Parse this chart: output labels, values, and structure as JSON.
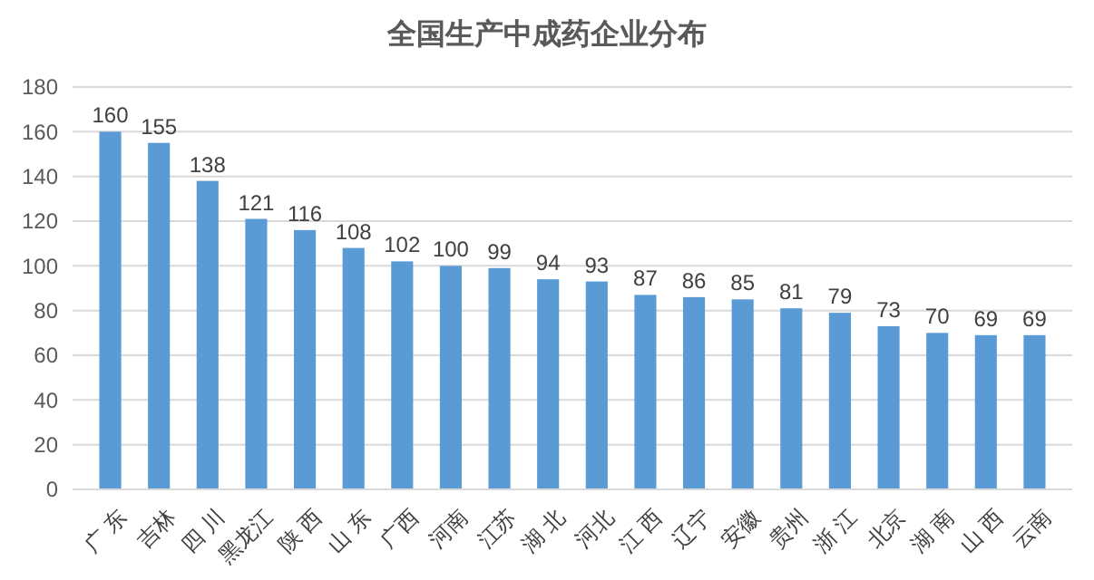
{
  "chart_data": {
    "type": "bar",
    "title": "全国生产中成药企业分布",
    "categories": [
      "广 东",
      "吉林",
      "四 川",
      "黑龙江",
      "陕 西",
      "山 东",
      "广西",
      "河南",
      "江苏",
      "湖 北",
      "河北",
      "江 西",
      "辽宁",
      "安徽",
      "贵州",
      "浙 江",
      "北京",
      "湖 南",
      "山 西",
      "云南"
    ],
    "values": [
      160,
      155,
      138,
      121,
      116,
      108,
      102,
      100,
      99,
      94,
      93,
      87,
      86,
      85,
      81,
      79,
      73,
      70,
      69,
      69
    ],
    "color": "#5b9bd5",
    "data_labels": true,
    "ylim": [
      0,
      180
    ],
    "yticks": [
      0,
      20,
      40,
      60,
      80,
      100,
      120,
      140,
      160,
      180
    ],
    "grid": "y"
  }
}
